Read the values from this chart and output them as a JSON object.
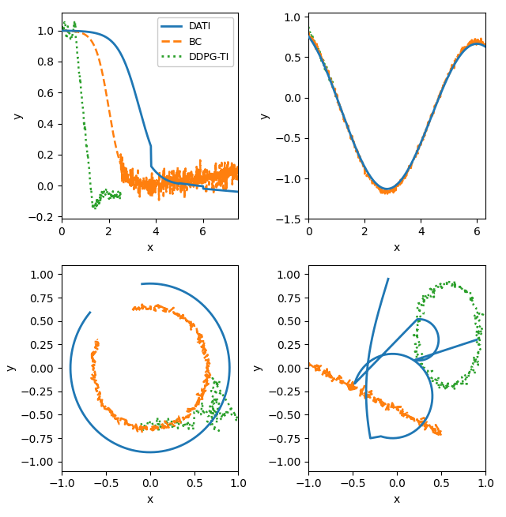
{
  "colors": {
    "DATI": "#1f77b4",
    "BC": "#ff7f0e",
    "DDPG_TI": "#2ca02c"
  },
  "legend_labels": [
    "DATI",
    "BC",
    "DDPG-TI"
  ],
  "figsize": [
    6.4,
    6.55
  ],
  "dpi": 100
}
